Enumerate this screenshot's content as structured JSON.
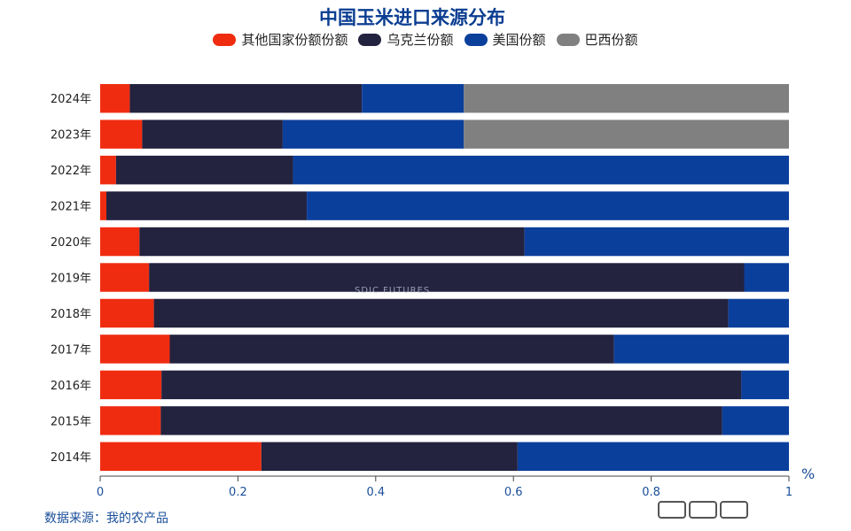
{
  "title": "中国玉米进口来源分布",
  "source_note": "数据来源：我的农产品",
  "unit_label": "%",
  "watermark": "SDIC FUTURES",
  "colors": {
    "other": "#f02c10",
    "ukraine": "#23223f",
    "usa": "#0b3f9c",
    "brazil": "#808080",
    "axis": "#1a4f9a"
  },
  "chart_data": {
    "type": "bar",
    "orientation": "horizontal",
    "stacked": true,
    "title": "中国玉米进口来源分布",
    "xlabel": "",
    "ylabel": "",
    "xlim": [
      0,
      1
    ],
    "x_ticks": [
      "0",
      "0.2",
      "0.4",
      "0.6",
      "0.8",
      "1"
    ],
    "legend_position": "top",
    "grid": false,
    "categories": [
      "2024年",
      "2023年",
      "2022年",
      "2021年",
      "2020年",
      "2019年",
      "2018年",
      "2017年",
      "2016年",
      "2015年",
      "2014年"
    ],
    "series": [
      {
        "name": "其他国家份额份额",
        "color": "#f02c10",
        "values": [
          0.043,
          0.061,
          0.023,
          0.009,
          0.057,
          0.071,
          0.078,
          0.101,
          0.089,
          0.088,
          0.234
        ]
      },
      {
        "name": "乌克兰份额",
        "color": "#23223f",
        "values": [
          0.337,
          0.204,
          0.257,
          0.291,
          0.559,
          0.864,
          0.834,
          0.645,
          0.842,
          0.815,
          0.372
        ]
      },
      {
        "name": "美国份额",
        "color": "#0b3f9c",
        "values": [
          0.148,
          0.263,
          0.72,
          0.7,
          0.384,
          0.065,
          0.088,
          0.254,
          0.069,
          0.097,
          0.394
        ]
      },
      {
        "name": "巴西份额",
        "color": "#808080",
        "values": [
          0.472,
          0.472,
          0,
          0,
          0,
          0,
          0,
          0,
          0,
          0,
          0
        ]
      }
    ]
  }
}
